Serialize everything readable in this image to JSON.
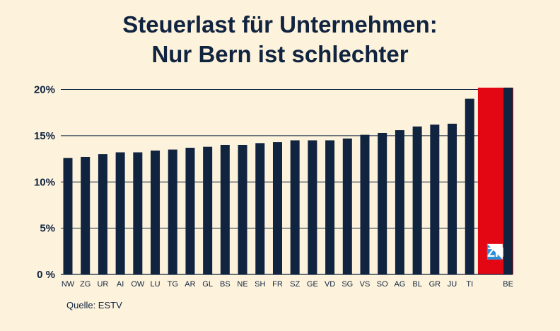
{
  "title_line1": "Steuerlast für Unternehmen:",
  "title_line2": "Nur Bern ist schlechter",
  "source": "Quelle: ESTV",
  "highlight": {
    "label": "ZH",
    "color": "#e30613"
  },
  "colors": {
    "bar": "#10233f",
    "background": "#fdf3dc",
    "highlight": "#e30613",
    "flag_blue": "#2a8fd8"
  },
  "icon": "zurich-flag-icon",
  "chart_data": {
    "type": "bar",
    "title": "Steuerlast für Unternehmen: Nur Bern ist schlechter",
    "xlabel": "",
    "ylabel": "",
    "ylim": [
      0,
      20.5
    ],
    "yticks": [
      0,
      5,
      10,
      15,
      20
    ],
    "ytick_labels": [
      "0 %",
      "5%",
      "10%",
      "15%",
      "20%"
    ],
    "grid": true,
    "categories": [
      "NW",
      "ZG",
      "UR",
      "AI",
      "OW",
      "LU",
      "TG",
      "AR",
      "GL",
      "BS",
      "NE",
      "SH",
      "FR",
      "SZ",
      "GE",
      "VD",
      "SG",
      "VS",
      "SO",
      "AG",
      "BL",
      "GR",
      "JU",
      "TI",
      "ZH",
      "BE"
    ],
    "values": [
      12.6,
      12.7,
      13.0,
      13.2,
      13.2,
      13.4,
      13.5,
      13.7,
      13.8,
      14.0,
      14.0,
      14.2,
      14.3,
      14.5,
      14.5,
      14.5,
      14.7,
      15.1,
      15.3,
      15.6,
      16.0,
      16.2,
      16.3,
      19.0,
      20.2,
      20.2
    ],
    "highlight_category": "ZH",
    "show_tick_label": [
      true,
      true,
      true,
      true,
      true,
      true,
      true,
      true,
      true,
      true,
      true,
      true,
      true,
      true,
      true,
      true,
      true,
      true,
      true,
      true,
      true,
      true,
      true,
      true,
      false,
      true
    ]
  }
}
